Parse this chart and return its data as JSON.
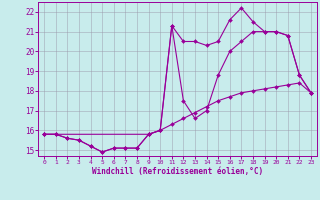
{
  "title": "",
  "xlabel": "Windchill (Refroidissement éolien,°C)",
  "ylabel": "",
  "background_color": "#c8ecec",
  "line_color": "#990099",
  "xlim": [
    -0.5,
    23.5
  ],
  "ylim": [
    14.7,
    22.5
  ],
  "xticks": [
    0,
    1,
    2,
    3,
    4,
    5,
    6,
    7,
    8,
    9,
    10,
    11,
    12,
    13,
    14,
    15,
    16,
    17,
    18,
    19,
    20,
    21,
    22,
    23
  ],
  "yticks": [
    15,
    16,
    17,
    18,
    19,
    20,
    21,
    22
  ],
  "grid_color": "#9999aa",
  "line1_x": [
    0,
    1,
    2,
    3,
    4,
    5,
    6,
    7,
    8,
    9,
    10,
    11,
    12,
    13,
    14,
    15,
    16,
    17,
    18,
    19,
    20,
    21,
    22,
    23
  ],
  "line1_y": [
    15.8,
    15.8,
    15.6,
    15.5,
    15.2,
    14.9,
    15.1,
    15.1,
    15.1,
    15.8,
    16.0,
    21.3,
    20.5,
    20.5,
    20.3,
    20.5,
    21.6,
    22.2,
    21.5,
    21.0,
    21.0,
    20.8,
    18.8,
    17.9
  ],
  "line2_x": [
    0,
    1,
    2,
    3,
    4,
    5,
    6,
    7,
    8,
    9,
    10,
    11,
    12,
    13,
    14,
    15,
    16,
    17,
    18,
    19,
    20,
    21,
    22,
    23
  ],
  "line2_y": [
    15.8,
    15.8,
    15.6,
    15.5,
    15.2,
    14.9,
    15.1,
    15.1,
    15.1,
    15.8,
    16.0,
    21.3,
    17.5,
    16.6,
    17.0,
    18.8,
    20.0,
    20.5,
    21.0,
    21.0,
    21.0,
    20.8,
    18.8,
    17.9
  ],
  "line3_x": [
    0,
    9,
    10,
    11,
    12,
    13,
    14,
    15,
    16,
    17,
    18,
    19,
    20,
    21,
    22,
    23
  ],
  "line3_y": [
    15.8,
    15.8,
    16.0,
    16.3,
    16.6,
    16.9,
    17.2,
    17.5,
    17.7,
    17.9,
    18.0,
    18.1,
    18.2,
    18.3,
    18.4,
    17.9
  ]
}
